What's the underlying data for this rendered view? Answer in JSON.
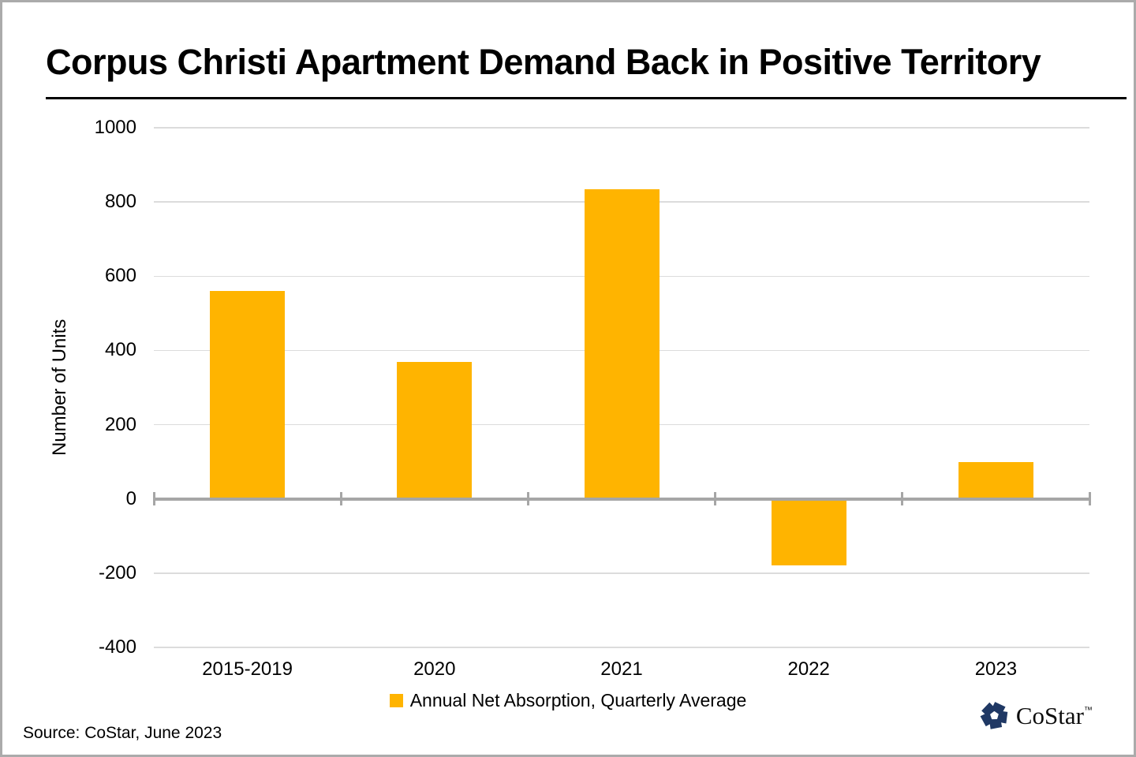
{
  "title": "Corpus Christi Apartment Demand Back in Positive Territory",
  "source": "Source: CoStar, June 2023",
  "logo": {
    "text": "CoStar",
    "tm": "™",
    "mark_color": "#1f3864"
  },
  "legend": {
    "label": "Annual Net Absorption, Quarterly Average",
    "color": "#ffb400"
  },
  "chart_data": {
    "type": "bar",
    "title": "Corpus Christi Apartment Demand Back in Positive Territory",
    "categories": [
      "2015-2019",
      "2020",
      "2021",
      "2022",
      "2023"
    ],
    "values": [
      560,
      370,
      835,
      -180,
      100
    ],
    "series_name": "Annual Net Absorption, Quarterly Average",
    "xlabel": "",
    "ylabel": "Number of Units",
    "ylim": [
      -400,
      1000
    ],
    "ytick_step": 200,
    "grid": true,
    "legend_position": "bottom",
    "bar_color": "#ffb400",
    "axis_color": "#a6a6a6",
    "gridline_color": "#dcdcdc"
  }
}
